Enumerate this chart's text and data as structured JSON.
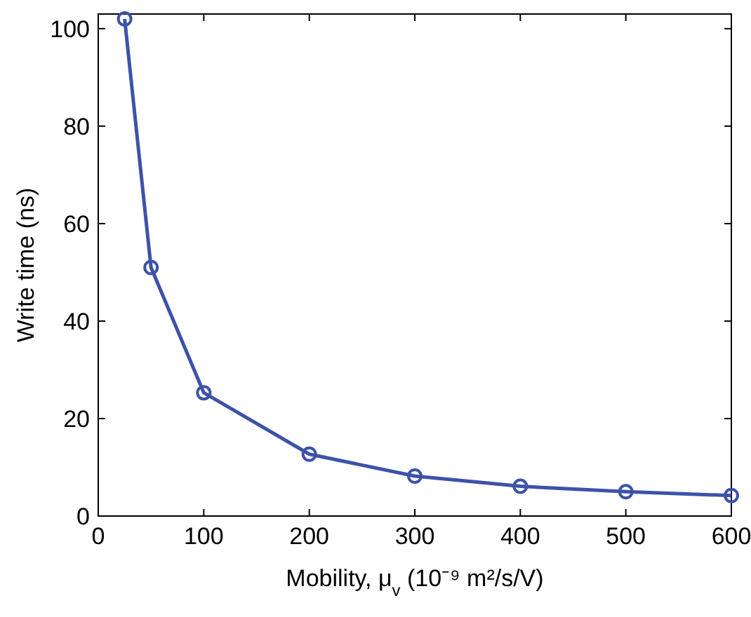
{
  "chart_data": {
    "type": "line",
    "xlabel": "Mobility, μ$_{v}$ (10⁻⁹ m²/s/V)",
    "ylabel": "Write time (ns)",
    "x": [
      25,
      50,
      100,
      200,
      300,
      400,
      500,
      600
    ],
    "series": [
      {
        "color": "#3d52a8",
        "values": [
          102,
          51,
          25.3,
          12.7,
          8.2,
          6.1,
          5,
          4.2
        ]
      }
    ],
    "xlim": [
      0,
      600
    ],
    "ylim": [
      0,
      103
    ],
    "xticks": [
      0,
      100,
      200,
      300,
      400,
      500,
      600
    ],
    "yticks": [
      0,
      20,
      40,
      60,
      80,
      100
    ],
    "grid": false,
    "marker": "circle",
    "line_style": "solid"
  }
}
